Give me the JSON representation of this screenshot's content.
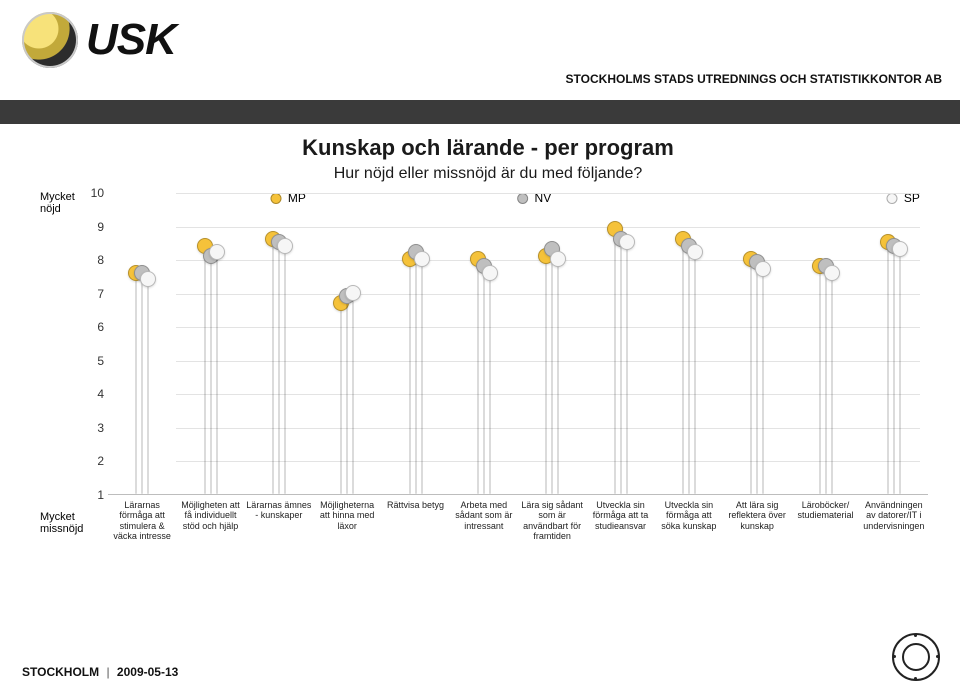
{
  "header": {
    "org_line": "STOCKHOLMS STADS UTREDNINGS OCH STATISTIKKONTOR AB",
    "logo_text": "USK"
  },
  "footer": {
    "city": "STOCKHOLM",
    "date": "2009-05-13"
  },
  "chart": {
    "type": "lollipop",
    "title": "Kunskap och lärande - per program",
    "subtitle": "Hur nöjd eller missnöjd är du med följande?",
    "y_axis": {
      "min": 1,
      "max": 10,
      "tick_step": 1,
      "top_label": "Mycket nöjd",
      "bottom_label": "Mycket missnöjd",
      "tick_color": "#333333",
      "grid_color": "#e3e3e3",
      "axis_color": "#bdbdbd"
    },
    "legend": {
      "position_pct": {
        "MP": 22,
        "NV": 52,
        "SP": 97
      }
    },
    "series": [
      {
        "id": "MP",
        "label": "MP",
        "color": "#f5c23a"
      },
      {
        "id": "NV",
        "label": "NV",
        "color": "#bfbfbf"
      },
      {
        "id": "SP",
        "label": "SP",
        "color": "#f6f6f6"
      }
    ],
    "stem_color": "rgba(0,0,0,.14)",
    "background_color": "#ffffff",
    "categories": [
      "Lärarnas förmåga att stimulera & väcka intresse",
      "Möjligheten att få individuellt stöd och hjälp",
      "Lärarnas ämnes - kunskaper",
      "Möjligheterna att hinna med läxor",
      "Rättvisa betyg",
      "Arbeta med sådant som är intressant",
      "Lära sig sådant som är användbart för framtiden",
      "Utveckla sin förmåga att ta studieansvar",
      "Utveckla sin förmåga att söka kunskap",
      "Att lära sig reflektera över kunskap",
      "Läroböcker/ studiematerial",
      "Användningen av datorer/IT i undervisningen"
    ],
    "values": {
      "MP": [
        7.6,
        8.4,
        8.6,
        6.7,
        8.0,
        8.0,
        8.1,
        8.9,
        8.6,
        8.0,
        7.8,
        8.5
      ],
      "NV": [
        7.6,
        8.1,
        8.5,
        6.9,
        8.2,
        7.8,
        8.3,
        8.6,
        8.4,
        7.9,
        7.8,
        8.4
      ],
      "SP": [
        7.4,
        8.2,
        8.4,
        7.0,
        8.0,
        7.6,
        8.0,
        8.5,
        8.2,
        7.7,
        7.6,
        8.3
      ]
    }
  }
}
